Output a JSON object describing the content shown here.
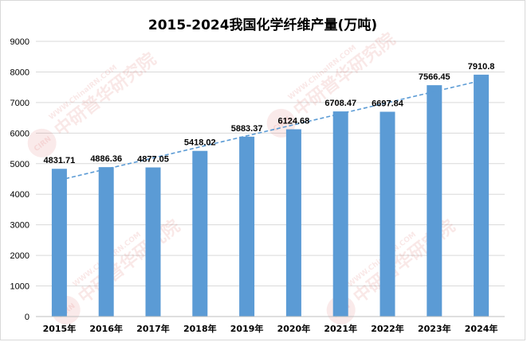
{
  "chart_data": {
    "type": "bar",
    "title": "2015-2024我国化学纤维产量(万吨)",
    "categories": [
      "2015年",
      "2016年",
      "2017年",
      "2018年",
      "2019年",
      "2020年",
      "2021年",
      "2022年",
      "2023年",
      "2024年"
    ],
    "values": [
      4831.71,
      4886.36,
      4877.05,
      5418.02,
      5883.37,
      6124.68,
      6708.47,
      6697.84,
      7566.45,
      7910.8
    ],
    "data_labels": [
      "4831.71",
      "4886.36",
      "4877.05",
      "5418.02",
      "5883.37",
      "6124.68",
      "6708.47",
      "6697.84",
      "7566.45",
      "7910.8"
    ],
    "ylim": [
      0,
      9000
    ],
    "yticks": [
      0,
      1000,
      2000,
      3000,
      4000,
      5000,
      6000,
      7000,
      8000,
      9000
    ],
    "trendline": "linear",
    "grid": true,
    "legend": "none",
    "bar_color": "#5b9bd5",
    "trend_color": "#5b9bd5",
    "grid_color": "#d9d9d9"
  },
  "watermark": {
    "url_text": "WWW.ChinaIRN.COM",
    "brand_text": "中研普华研究院",
    "logo_text": "CIRN",
    "color": "#d9534f"
  }
}
